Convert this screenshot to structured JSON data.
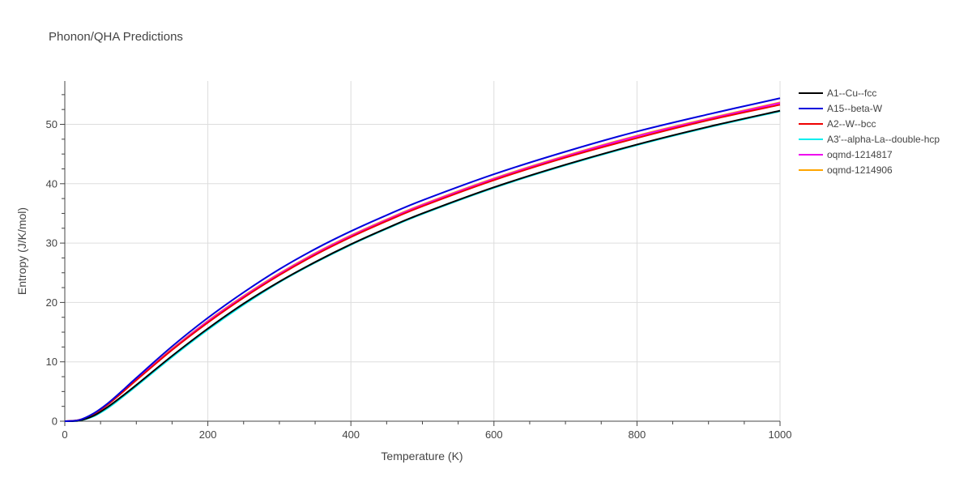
{
  "chart_data": {
    "type": "line",
    "title": "Phonon/QHA Predictions",
    "xlabel": "Temperature (K)",
    "ylabel": "Entropy (J/K/mol)",
    "xlim": [
      0,
      1000
    ],
    "ylim": [
      0,
      57.3
    ],
    "xticks": [
      0,
      200,
      400,
      600,
      800,
      1000
    ],
    "yticks": [
      0,
      10,
      20,
      30,
      40,
      50
    ],
    "grid": true,
    "legend_position": "top-right-outside",
    "x": [
      0,
      20,
      40,
      60,
      80,
      100,
      150,
      200,
      250,
      300,
      350,
      400,
      450,
      500,
      600,
      700,
      800,
      900,
      1000
    ],
    "series": [
      {
        "name": "A1--Cu--fcc",
        "color": "#000000",
        "values": [
          0,
          0.1,
          0.9,
          2.4,
          4.2,
          6.1,
          11.0,
          15.6,
          19.8,
          23.5,
          26.8,
          29.8,
          32.5,
          35.0,
          39.4,
          43.2,
          46.6,
          49.6,
          52.3
        ]
      },
      {
        "name": "A15--beta-W",
        "color": "#0000dd",
        "values": [
          0,
          0.2,
          1.3,
          3.0,
          5.1,
          7.3,
          12.6,
          17.4,
          21.7,
          25.6,
          29.0,
          32.0,
          34.7,
          37.2,
          41.6,
          45.4,
          48.8,
          51.7,
          54.4
        ]
      },
      {
        "name": "A2--W--bcc",
        "color": "#ee0000",
        "values": [
          0,
          0.2,
          1.2,
          2.8,
          4.8,
          6.9,
          12.0,
          16.6,
          20.8,
          24.6,
          28.0,
          31.0,
          33.7,
          36.2,
          40.6,
          44.4,
          47.7,
          50.7,
          53.3
        ]
      },
      {
        "name": "A3'--alpha-La--double-hcp",
        "color": "#00eeee",
        "values": [
          0,
          0.1,
          0.8,
          2.2,
          4.0,
          5.9,
          10.8,
          15.4,
          19.6,
          23.4,
          26.7,
          29.7,
          32.4,
          34.9,
          39.3,
          43.1,
          46.5,
          49.5,
          52.2
        ]
      },
      {
        "name": "oqmd-1214817",
        "color": "#ee00ee",
        "values": [
          0,
          0.2,
          1.2,
          2.8,
          4.9,
          7.0,
          12.1,
          16.8,
          21.0,
          24.8,
          28.2,
          31.2,
          33.9,
          36.4,
          40.8,
          44.6,
          48.0,
          50.9,
          53.6
        ]
      },
      {
        "name": "oqmd-1214906",
        "color": "#ffa500",
        "values": [
          0,
          0.2,
          1.2,
          2.9,
          4.9,
          7.0,
          12.2,
          16.9,
          21.1,
          24.9,
          28.3,
          31.3,
          34.0,
          36.5,
          40.9,
          44.7,
          48.1,
          51.0,
          53.7
        ]
      }
    ]
  }
}
